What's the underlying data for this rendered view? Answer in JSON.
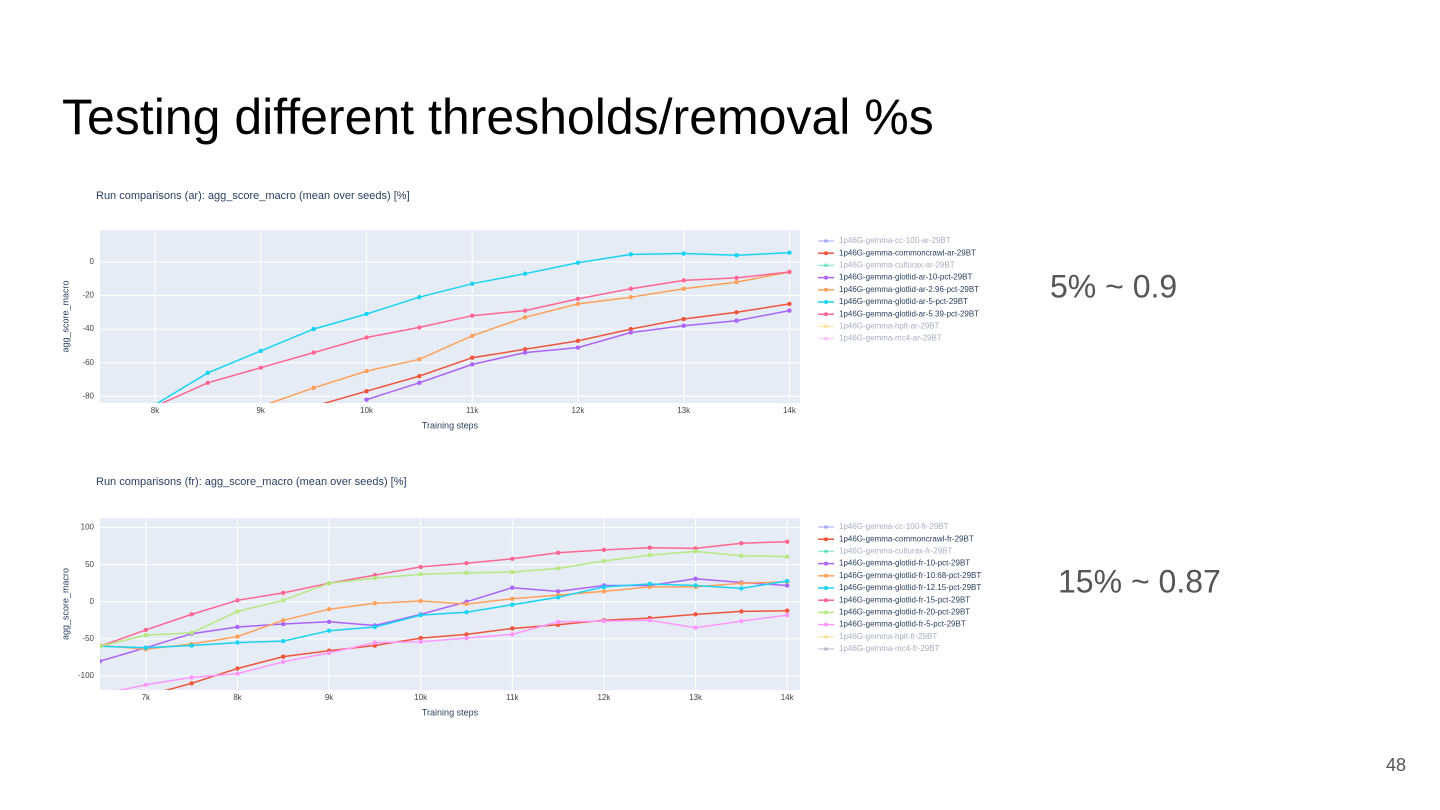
{
  "title": "Testing different thresholds/removal %s",
  "page_number": "48",
  "chart_data": [
    {
      "type": "line",
      "title": "Run comparisons (ar): agg_score_macro (mean over seeds) [%]",
      "x_label": "Training steps",
      "y_label": "agg_score_macro",
      "annotation": "5% ~ 0.9",
      "x": [
        8000,
        8500,
        9000,
        9500,
        10000,
        10500,
        11000,
        11500,
        12000,
        12500,
        13000,
        13500,
        14000
      ],
      "xlim": [
        7480,
        14100
      ],
      "xticks": [
        {
          "value": 8000,
          "label": "8k"
        },
        {
          "value": 9000,
          "label": "9k"
        },
        {
          "value": 10000,
          "label": "10k"
        },
        {
          "value": 11000,
          "label": "11k"
        },
        {
          "value": 12000,
          "label": "12k"
        },
        {
          "value": 13000,
          "label": "13k"
        },
        {
          "value": 14000,
          "label": "14k"
        }
      ],
      "ylim": [
        -84,
        19
      ],
      "yticks": [
        0,
        -20,
        -40,
        -60,
        -80
      ],
      "grid": true,
      "series": [
        {
          "name": "1p46G-gemma-cc-100-ar-29BT",
          "color": "#636efa",
          "visible": false
        },
        {
          "name": "1p46G-gemma-commoncrawl-ar-29BT",
          "color": "#ef553b",
          "values": [
            null,
            null,
            null,
            -86,
            -77,
            -68,
            -57,
            -52,
            -47,
            -40,
            -34,
            -30,
            -25
          ]
        },
        {
          "name": "1p46G-gemma-culturax-ar-29BT",
          "color": "#00cc96",
          "visible": false
        },
        {
          "name": "1p46G-gemma-glotlid-ar-10-pct-29BT",
          "color": "#ab63fa",
          "values": [
            null,
            null,
            null,
            null,
            -82,
            -72,
            -61,
            -54,
            -51,
            -42,
            -38,
            -35,
            -29
          ]
        },
        {
          "name": "1p46G-gemma-glotlid-ar-2.96-pct-29BT",
          "color": "#ffa15a",
          "values": [
            null,
            null,
            -86,
            -75,
            -65,
            -58,
            -44,
            -33,
            -25,
            -21,
            -16,
            -12,
            -6
          ]
        },
        {
          "name": "1p46G-gemma-glotlid-ar-5-pct-29BT",
          "color": "#19d3f3",
          "values": [
            -85,
            -66,
            -53,
            -40,
            -31,
            -21,
            -13,
            -7,
            -0.5,
            4.5,
            5,
            4,
            5.5
          ]
        },
        {
          "name": "1p46G-gemma-glotlid-ar-5.39-pct-29BT",
          "color": "#ff6692",
          "values": [
            -86,
            -72,
            -63,
            -54,
            -45,
            -39,
            -32,
            -29,
            -22,
            -16,
            -11,
            -9.5,
            -6
          ]
        },
        {
          "name": "1p46G-gemma-hplt-ar-29BT",
          "color": "#fecb52",
          "visible": false
        },
        {
          "name": "1p46G-gemma-mc4-ar-29BT",
          "color": "#ff97ff",
          "visible": false
        }
      ]
    },
    {
      "type": "line",
      "title": "Run comparisons (fr): agg_score_macro (mean over seeds) [%]",
      "x_label": "Training steps",
      "y_label": "agg_score_macro",
      "annotation": "15% ~ 0.87",
      "x": [
        6500,
        7000,
        7500,
        8000,
        8500,
        9000,
        9500,
        10000,
        10500,
        11000,
        11500,
        12000,
        12500,
        13000,
        13500,
        14000
      ],
      "xlim": [
        6500,
        14140
      ],
      "xticks": [
        {
          "value": 7000,
          "label": "7k"
        },
        {
          "value": 8000,
          "label": "8k"
        },
        {
          "value": 9000,
          "label": "9k"
        },
        {
          "value": 10000,
          "label": "10k"
        },
        {
          "value": 11000,
          "label": "11k"
        },
        {
          "value": 12000,
          "label": "12k"
        },
        {
          "value": 13000,
          "label": "13k"
        },
        {
          "value": 14000,
          "label": "14k"
        }
      ],
      "ylim": [
        -119,
        113
      ],
      "yticks": [
        100,
        50,
        0,
        -50,
        -100
      ],
      "grid": true,
      "series": [
        {
          "name": "1p46G-gemma-cc-100-fr-29BT",
          "color": "#636efa",
          "visible": false
        },
        {
          "name": "1p46G-gemma-commoncrawl-fr-29BT",
          "color": "#ef553b",
          "values": [
            null,
            -127,
            -110,
            -90,
            -74,
            -66,
            -59,
            -49,
            -44,
            -36,
            -31,
            -25,
            -22,
            -17,
            -13,
            -12
          ]
        },
        {
          "name": "1p46G-gemma-culturax-fr-29BT",
          "color": "#00cc96",
          "visible": false
        },
        {
          "name": "1p46G-gemma-glotlid-fr-10-pct-29BT",
          "color": "#ab63fa",
          "values": [
            -80,
            -62,
            -43,
            -34,
            -30,
            -27,
            -32,
            -17,
            0,
            19,
            14,
            22,
            22,
            31,
            26,
            22
          ]
        },
        {
          "name": "1p46G-gemma-glotlid-fr-10.68-pct-29BT",
          "color": "#ffa15a",
          "values": [
            -59,
            -64,
            -57,
            -47,
            -25,
            -10,
            -2,
            1,
            -3,
            4,
            9,
            14,
            20,
            20,
            25,
            27
          ]
        },
        {
          "name": "1p46G-gemma-glotlid-fr-12.15-pct-29BT",
          "color": "#19d3f3",
          "values": [
            -60,
            -62,
            -59,
            -55,
            -53,
            -39,
            -34,
            -18,
            -14,
            -4,
            6,
            20,
            24,
            22,
            18,
            28
          ]
        },
        {
          "name": "1p46G-gemma-glotlid-fr-15-pct-29BT",
          "color": "#ff6692",
          "values": [
            -60,
            -38,
            -17,
            2,
            12,
            25,
            36,
            47,
            52,
            58,
            66,
            70,
            73,
            72,
            79,
            81
          ]
        },
        {
          "name": "1p46G-gemma-glotlid-fr-20-pct-29BT",
          "color": "#b6e880",
          "values": [
            -60,
            -45,
            -42,
            -13,
            2,
            25,
            32,
            37,
            39,
            40,
            45,
            55,
            63,
            68,
            62,
            61
          ]
        },
        {
          "name": "1p46G-gemma-glotlid-fr-5-pct-29BT",
          "color": "#ff97ff",
          "values": [
            -125,
            -112,
            -102,
            -97,
            -81,
            -69,
            -55,
            -54,
            -49,
            -44,
            -27,
            -26,
            -25,
            -35,
            -26,
            -18
          ]
        },
        {
          "name": "1p46G-gemma-hplt-fr-29BT",
          "color": "#fecb52",
          "visible": false
        },
        {
          "name": "1p46G-gemma-mc4-fr-29BT",
          "color": "#8c8fa8",
          "visible": false
        }
      ]
    }
  ]
}
